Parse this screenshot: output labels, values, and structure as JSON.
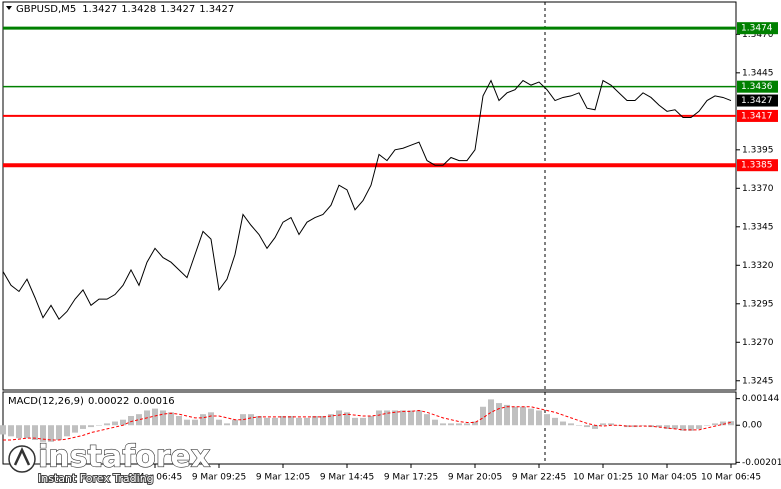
{
  "chart_data": [
    {
      "type": "line",
      "symbol": "GBPUSD,M5",
      "ohlc": [
        1.3427,
        1.3428,
        1.3427,
        1.3427
      ],
      "color": "#000000",
      "categories": [
        null,
        null,
        null,
        null,
        null,
        null,
        null,
        null,
        null,
        null,
        null,
        null,
        null,
        null,
        null,
        null,
        null,
        null,
        null,
        "9 Mar 06:45",
        null,
        null,
        null,
        null,
        null,
        null,
        null,
        "9 Mar 09:25",
        null,
        null,
        null,
        null,
        null,
        null,
        null,
        "9 Mar 12:05",
        null,
        null,
        null,
        null,
        null,
        null,
        null,
        "9 Mar 14:45",
        null,
        null,
        null,
        null,
        null,
        null,
        null,
        "9 Mar 17:25",
        null,
        null,
        null,
        null,
        null,
        null,
        null,
        "9 Mar 20:05",
        null,
        null,
        null,
        null,
        null,
        null,
        null,
        "9 Mar 22:45",
        null,
        null,
        null,
        null,
        null,
        null,
        null,
        "10 Mar 01:25",
        null,
        null,
        null,
        null,
        null,
        null,
        null,
        "10 Mar 04:05",
        null,
        null,
        null,
        null,
        null,
        null,
        null,
        "10 Mar 06:45"
      ],
      "values": [
        1.3316,
        1.3307,
        1.3303,
        1.3311,
        1.3299,
        1.3286,
        1.3294,
        1.3285,
        1.329,
        1.3298,
        1.3304,
        1.3294,
        1.3298,
        1.3298,
        1.3301,
        1.3307,
        1.3317,
        1.3307,
        1.3322,
        1.3331,
        1.3325,
        1.3322,
        1.3317,
        1.3312,
        1.3327,
        1.3342,
        1.3337,
        1.3304,
        1.3311,
        1.3327,
        1.3353,
        1.3346,
        1.334,
        1.3331,
        1.3338,
        1.3348,
        1.3351,
        1.334,
        1.3348,
        1.3351,
        1.3353,
        1.3359,
        1.3372,
        1.3369,
        1.3356,
        1.3362,
        1.3372,
        1.3392,
        1.3388,
        1.3395,
        1.3396,
        1.3398,
        1.34,
        1.3388,
        1.3385,
        1.3385,
        1.339,
        1.3388,
        1.3388,
        1.3395,
        1.343,
        1.344,
        1.3427,
        1.3432,
        1.3434,
        1.344,
        1.3437,
        1.3439,
        1.3434,
        1.3427,
        1.3429,
        1.343,
        1.3432,
        1.3422,
        1.3421,
        1.344,
        1.3437,
        1.3432,
        1.3427,
        1.3427,
        1.3432,
        1.3429,
        1.3424,
        1.342,
        1.3421,
        1.3416,
        1.3416,
        1.342,
        1.3427,
        1.343,
        1.3429,
        1.3427
      ],
      "ylim": [
        1.3239,
        1.3491
      ],
      "yticks": [
        {
          "value": 1.347,
          "label": "1.3470"
        },
        1.3445,
        1.3395,
        {
          "value": 1.337,
          "label": "1.3370"
        },
        1.3345,
        {
          "value": 1.332,
          "label": "1.3320"
        },
        1.3295,
        {
          "value": 1.327,
          "label": "1.3270"
        },
        1.3245
      ],
      "levels": [
        {
          "value": 1.3474,
          "color": "#008000"
        },
        {
          "value": 1.3436,
          "color": "#008000"
        },
        {
          "value": 1.3417,
          "color": "#ff0000"
        },
        {
          "value": 1.3385,
          "color": "#ff0000"
        }
      ],
      "last_price": 1.3427,
      "grid": false
    },
    {
      "type": "macd",
      "title": "MACD(12,26,9)",
      "histogram": {
        "color": "#c0c0c0",
        "values": [
          -0.0005,
          -0.0006,
          -0.0007,
          -0.0007,
          -0.0008,
          -0.0009,
          -0.0009,
          -0.0008,
          -0.0006,
          -0.0004,
          -0.0002,
          -0.0001,
          0,
          0.0001,
          0.0002,
          0.0003,
          0.0005,
          0.0006,
          0.0008,
          0.0009,
          0.0008,
          0.0007,
          0.0005,
          0.0003,
          0.0003,
          0.0006,
          0.0007,
          0.0003,
          0.0001,
          0.0003,
          0.0006,
          0.0006,
          0.0005,
          0.0004,
          0.0004,
          0.0005,
          0.0005,
          0.0004,
          0.0004,
          0.0005,
          0.0005,
          0.0006,
          0.0008,
          0.0007,
          0.0004,
          0.0004,
          0.0005,
          0.0008,
          0.0008,
          0.0008,
          0.0008,
          0.0008,
          0.0008,
          0.0006,
          0.0003,
          0.0001,
          0.0001,
          0.0001,
          0.0001,
          0.0002,
          0.001,
          0.0014,
          0.0012,
          0.0011,
          0.001,
          0.001,
          0.0009,
          0.0008,
          0.0006,
          0.0004,
          0.0002,
          0.0001,
          0,
          -0.0001,
          -0.0002,
          0.0001,
          0.0001,
          0,
          -0.0001,
          -0.0001,
          0,
          -0.0001,
          -0.0001,
          -0.0002,
          -0.0002,
          -0.0003,
          -0.0003,
          -0.0002,
          0,
          0.0001,
          0.0002,
          0.00022
        ]
      },
      "signal": {
        "color": "#ff0000",
        "values": [
          -0.0008,
          -0.0008,
          -0.00075,
          -0.0007,
          -0.0007,
          -0.00075,
          -0.0008,
          -0.0008,
          -0.00075,
          -0.00065,
          -0.00055,
          -0.0004,
          -0.0003,
          -0.0002,
          -0.0001,
          0,
          0.0002,
          0.0003,
          0.0004,
          0.0005,
          0.0006,
          0.00065,
          0.0006,
          0.0005,
          0.0004,
          0.0004,
          0.0005,
          0.0005,
          0.0004,
          0.0003,
          0.0003,
          0.0004,
          0.00045,
          0.00045,
          0.00045,
          0.00045,
          0.00045,
          0.00045,
          0.00045,
          0.00045,
          0.00045,
          0.0005,
          0.00055,
          0.0006,
          0.00055,
          0.0005,
          0.0005,
          0.00055,
          0.00065,
          0.0007,
          0.00075,
          0.00075,
          0.0008,
          0.0007,
          0.00055,
          0.0004,
          0.0003,
          0.0002,
          0.00015,
          0.00015,
          0.0004,
          0.0007,
          0.0009,
          0.001,
          0.001,
          0.001,
          0.001,
          0.0009,
          0.0008,
          0.0007,
          0.00055,
          0.0004,
          0.00025,
          0.0001,
          0,
          -5e-05,
          0,
          0,
          -5e-05,
          -5e-05,
          -5e-05,
          -5e-05,
          -0.0001,
          -0.00015,
          -0.0002,
          -0.00025,
          -0.00025,
          -0.00025,
          -0.00015,
          -5e-05,
          5e-05,
          0.00016
        ]
      },
      "ylim": [
        -0.0021,
        0.0018
      ],
      "yticks": [
        0.00144,
        {
          "value": 0,
          "label": "0.00"
        },
        -0.00201
      ]
    }
  ],
  "watermark": {
    "brand": "instaforex",
    "tagline": "Instant Forex Trading"
  }
}
